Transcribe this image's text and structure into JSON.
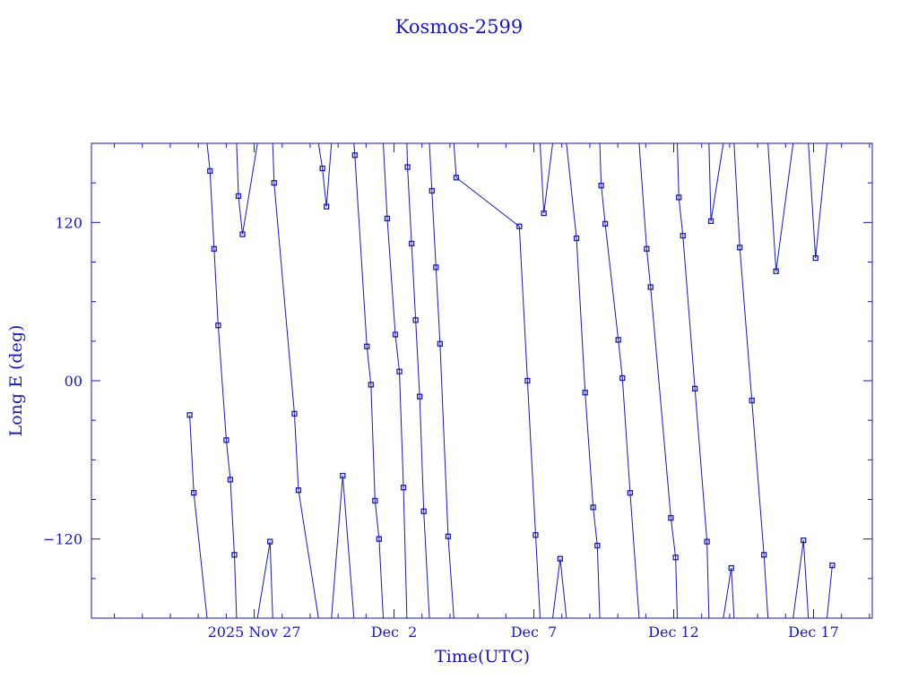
{
  "chart_data": {
    "type": "line",
    "title": "Kosmos-2599",
    "xlabel": "Time(UTC)",
    "ylabel": "Long E (deg)",
    "x_ticks": [
      {
        "date": "2025-11-27",
        "label": "2025 Nov 27"
      },
      {
        "date": "2025-12-02",
        "label": "Dec  2"
      },
      {
        "date": "2025-12-07",
        "label": "Dec  7"
      },
      {
        "date": "2025-12-12",
        "label": "Dec 12"
      },
      {
        "date": "2025-12-17",
        "label": "Dec 17"
      }
    ],
    "xlim": [
      "2025-11-21T04:19",
      "2025-12-19T02:24"
    ],
    "y_ticks": [
      {
        "value": 120,
        "label": "120"
      },
      {
        "value": 0,
        "label": "00"
      },
      {
        "value": -120,
        "label": "−120"
      }
    ],
    "ylim": [
      -180,
      180
    ],
    "color": "#1a1aa8",
    "series": [
      {
        "points": [
          [
            "2025-11-24T16:38",
            -26
          ],
          [
            "2025-11-24T20:09",
            -85
          ],
          [
            "2025-11-25T10:04",
            159
          ],
          [
            "2025-11-25T13:34",
            100
          ],
          [
            "2025-11-25T17:04",
            42
          ],
          [
            "2025-11-26T00:03",
            -45
          ],
          [
            "2025-11-26T03:31",
            -75
          ],
          [
            "2025-11-26T07:00",
            -132
          ],
          [
            "2025-11-26T10:29",
            140
          ],
          [
            "2025-11-26T13:57",
            111
          ],
          [
            "2025-11-27T13:35",
            -122
          ],
          [
            "2025-11-27T17:04",
            150
          ],
          [
            "2025-11-28T10:31",
            -25
          ],
          [
            "2025-11-28T14:00",
            -83
          ],
          [
            "2025-11-29T10:31",
            161
          ],
          [
            "2025-11-29T14:00",
            132
          ],
          [
            "2025-11-30T03:58",
            -72
          ],
          [
            "2025-11-30T14:21",
            171
          ],
          [
            "2025-12-01T00:43",
            26
          ],
          [
            "2025-12-01T04:11",
            -3
          ],
          [
            "2025-12-01T07:41",
            -91
          ],
          [
            "2025-12-01T11:10",
            -120
          ],
          [
            "2025-12-01T18:09",
            123
          ],
          [
            "2025-12-02T01:07",
            35
          ],
          [
            "2025-12-02T04:36",
            7
          ],
          [
            "2025-12-02T08:05",
            -81
          ],
          [
            "2025-12-02T11:34",
            162
          ],
          [
            "2025-12-02T15:03",
            104
          ],
          [
            "2025-12-02T18:32",
            46
          ],
          [
            "2025-12-02T22:01",
            -12
          ],
          [
            "2025-12-03T01:30",
            -99
          ],
          [
            "2025-12-03T08:29",
            144
          ],
          [
            "2025-12-03T11:59",
            86
          ],
          [
            "2025-12-03T15:28",
            28
          ],
          [
            "2025-12-03T22:26",
            -118
          ],
          [
            "2025-12-04T05:24",
            154
          ],
          [
            "2025-12-06T11:30",
            117
          ],
          [
            "2025-12-06T18:30",
            0
          ],
          [
            "2025-12-07T01:30",
            -117
          ],
          [
            "2025-12-07T08:34",
            127
          ],
          [
            "2025-12-07T22:34",
            -135
          ],
          [
            "2025-12-08T12:34",
            108
          ],
          [
            "2025-12-08T20:00",
            -9
          ],
          [
            "2025-12-09T02:52",
            -96
          ],
          [
            "2025-12-09T06:27",
            -125
          ],
          [
            "2025-12-09T09:48",
            148
          ],
          [
            "2025-12-09T13:13",
            119
          ],
          [
            "2025-12-10T00:27",
            31
          ],
          [
            "2025-12-10T03:58",
            2
          ],
          [
            "2025-12-10T10:36",
            -85
          ],
          [
            "2025-12-11T00:49",
            100
          ],
          [
            "2025-12-11T04:09",
            71
          ],
          [
            "2025-12-11T21:35",
            -104
          ],
          [
            "2025-12-12T01:38",
            -134
          ],
          [
            "2025-12-12T04:24",
            139
          ],
          [
            "2025-12-12T07:53",
            110
          ],
          [
            "2025-12-12T18:13",
            -6
          ],
          [
            "2025-12-13T04:33",
            -122
          ],
          [
            "2025-12-13T07:58",
            121
          ],
          [
            "2025-12-14T01:25",
            -142
          ],
          [
            "2025-12-14T08:42",
            101
          ],
          [
            "2025-12-14T19:04",
            -15
          ],
          [
            "2025-12-15T05:27",
            -132
          ],
          [
            "2025-12-15T15:50",
            83
          ],
          [
            "2025-12-16T15:22",
            -121
          ],
          [
            "2025-12-17T01:44",
            93
          ],
          [
            "2025-12-17T16:04",
            -140
          ]
        ]
      }
    ]
  }
}
